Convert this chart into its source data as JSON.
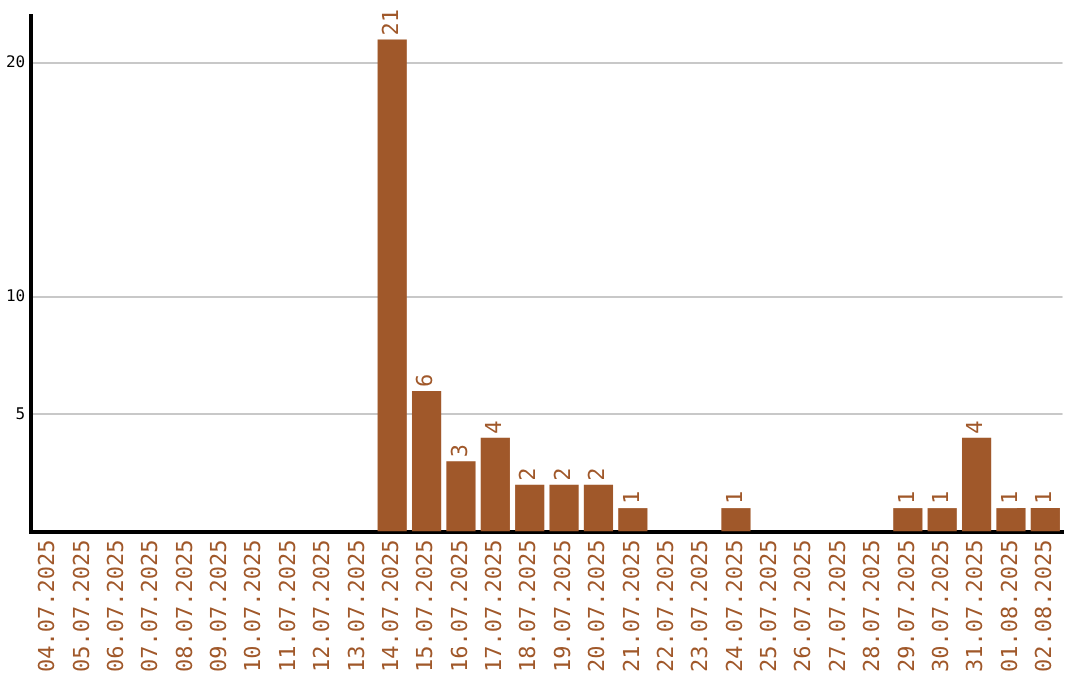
{
  "chart_data": {
    "type": "bar",
    "categories": [
      "04.07.2025",
      "05.07.2025",
      "06.07.2025",
      "07.07.2025",
      "08.07.2025",
      "09.07.2025",
      "10.07.2025",
      "11.07.2025",
      "12.07.2025",
      "13.07.2025",
      "14.07.2025",
      "15.07.2025",
      "16.07.2025",
      "17.07.2025",
      "18.07.2025",
      "19.07.2025",
      "20.07.2025",
      "21.07.2025",
      "22.07.2025",
      "23.07.2025",
      "24.07.2025",
      "25.07.2025",
      "26.07.2025",
      "27.07.2025",
      "28.07.2025",
      "29.07.2025",
      "30.07.2025",
      "31.07.2025",
      "01.08.2025",
      "02.08.2025"
    ],
    "values": [
      0,
      0,
      0,
      0,
      0,
      0,
      0,
      0,
      0,
      0,
      21,
      6,
      3,
      4,
      2,
      2,
      2,
      1,
      0,
      0,
      1,
      0,
      0,
      0,
      0,
      1,
      1,
      4,
      1,
      1
    ],
    "value_labels": [
      null,
      null,
      null,
      null,
      null,
      null,
      null,
      null,
      null,
      null,
      "21",
      "6",
      "3",
      "4",
      "2",
      "2",
      "2",
      "1",
      null,
      null,
      "1",
      null,
      null,
      null,
      null,
      "1",
      "1",
      "4",
      "1",
      "1"
    ],
    "color": "#a0582a",
    "ylim": [
      0,
      22
    ],
    "yticks": [
      5,
      10,
      20
    ],
    "grid": "y",
    "legend": false
  }
}
